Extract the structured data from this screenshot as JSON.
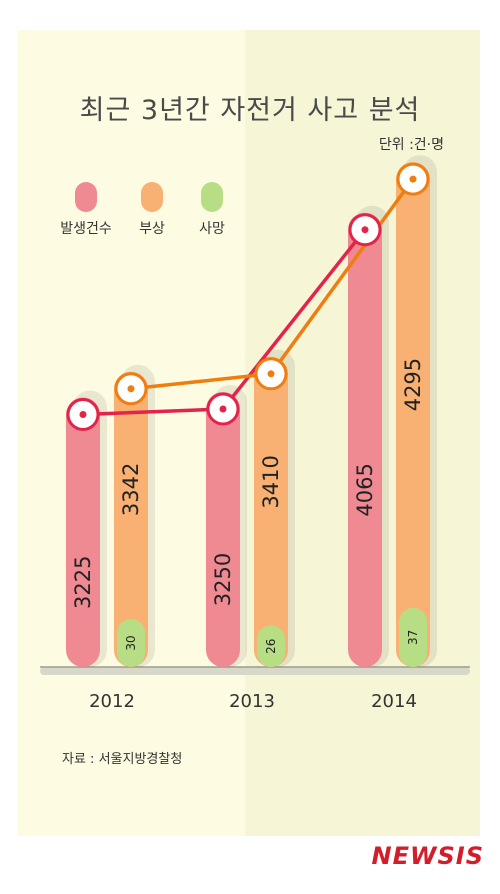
{
  "title": "최근 3년간 자전거 사고 분석",
  "unit_label": "단위 :건·명",
  "source": "자료 : 서울지방경찰청",
  "logo": "NEWSIS",
  "colors": {
    "accidents": "#ef8a93",
    "injuries": "#f8b172",
    "deaths": "#b8de85",
    "accidents_line": "#e3234a",
    "injuries_line": "#ef7d10",
    "background_left": "#fdfbe2",
    "background_right": "#f6f5d6"
  },
  "chart_data": {
    "type": "bar",
    "categories": [
      "2012",
      "2013",
      "2014"
    ],
    "series": [
      {
        "name": "발생건수",
        "values": [
          3225,
          3250,
          4065
        ]
      },
      {
        "name": "부상",
        "values": [
          3342,
          3410,
          4295
        ]
      },
      {
        "name": "사망",
        "values": [
          30,
          26,
          37
        ]
      }
    ],
    "lines": [
      "발생건수",
      "부상"
    ],
    "legend": "top-left",
    "grid": false
  }
}
